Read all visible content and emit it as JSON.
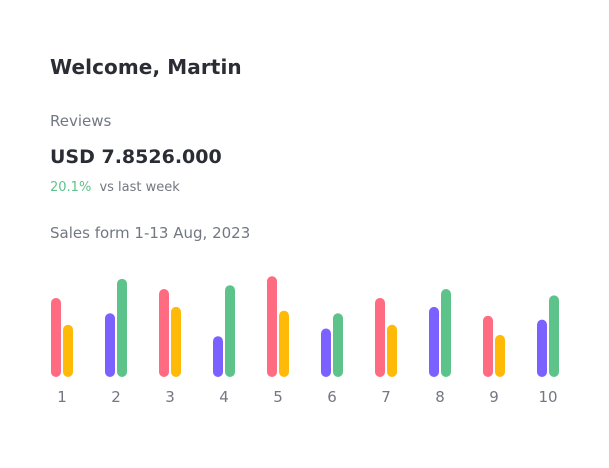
{
  "header": {
    "greeting": "Welcome, Martin"
  },
  "summary": {
    "label": "Reviews",
    "amount": "USD 7.8526.000",
    "change_pct": "20.1%",
    "change_text": "vs last week",
    "period": "Sales form 1-13 Aug, 2023"
  },
  "colors": {
    "pink": "#ff6b81",
    "yellow": "#ffba08",
    "purple": "#7b61ff",
    "green": "#5ec38a"
  },
  "chart_data": {
    "type": "bar",
    "categories": [
      "1",
      "2",
      "3",
      "4",
      "5",
      "6",
      "7",
      "8",
      "9",
      "10"
    ],
    "ylim": [
      0,
      80
    ],
    "groups": [
      {
        "bars": [
          {
            "value": 62,
            "color": "pink"
          },
          {
            "value": 41,
            "color": "yellow"
          }
        ]
      },
      {
        "bars": [
          {
            "value": 50,
            "color": "purple"
          },
          {
            "value": 77,
            "color": "green"
          }
        ]
      },
      {
        "bars": [
          {
            "value": 69,
            "color": "pink"
          },
          {
            "value": 55,
            "color": "yellow"
          }
        ]
      },
      {
        "bars": [
          {
            "value": 32,
            "color": "purple"
          },
          {
            "value": 72,
            "color": "green"
          }
        ]
      },
      {
        "bars": [
          {
            "value": 79,
            "color": "pink"
          },
          {
            "value": 52,
            "color": "yellow"
          }
        ]
      },
      {
        "bars": [
          {
            "value": 38,
            "color": "purple"
          },
          {
            "value": 50,
            "color": "green"
          }
        ]
      },
      {
        "bars": [
          {
            "value": 62,
            "color": "pink"
          },
          {
            "value": 41,
            "color": "yellow"
          }
        ]
      },
      {
        "bars": [
          {
            "value": 55,
            "color": "purple"
          },
          {
            "value": 69,
            "color": "green"
          }
        ]
      },
      {
        "bars": [
          {
            "value": 48,
            "color": "pink"
          },
          {
            "value": 33,
            "color": "yellow"
          }
        ]
      },
      {
        "bars": [
          {
            "value": 45,
            "color": "purple"
          },
          {
            "value": 64,
            "color": "green"
          }
        ]
      }
    ]
  }
}
